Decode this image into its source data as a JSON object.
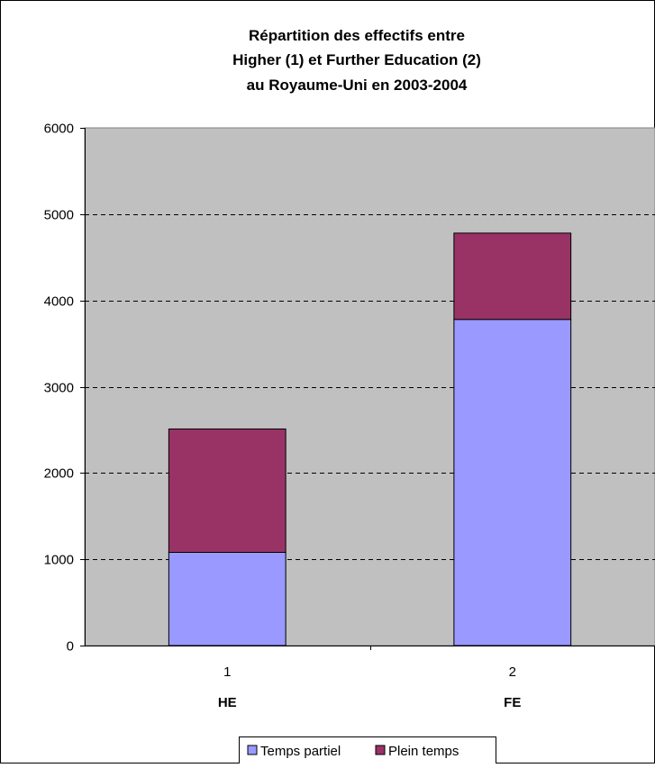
{
  "chart_data": {
    "type": "bar",
    "stacked": true,
    "title": [
      "Répartition des effectifs entre",
      "Higher (1) et Further Education (2)",
      "au Royaume-Uni en 2003-2004"
    ],
    "categories": [
      "1",
      "2"
    ],
    "group_labels": [
      "HE",
      "FE"
    ],
    "series": [
      {
        "name": "Temps partiel",
        "values": [
          1080,
          3780
        ],
        "color": "#9999ff"
      },
      {
        "name": "Plein temps",
        "values": [
          1430,
          1000
        ],
        "color": "#993366"
      }
    ],
    "ylim": [
      0,
      6000
    ],
    "yticks": [
      0,
      1000,
      2000,
      3000,
      4000,
      5000,
      6000
    ],
    "grid": true,
    "plot_background": "#c0c0c0",
    "legend_position": "bottom"
  }
}
